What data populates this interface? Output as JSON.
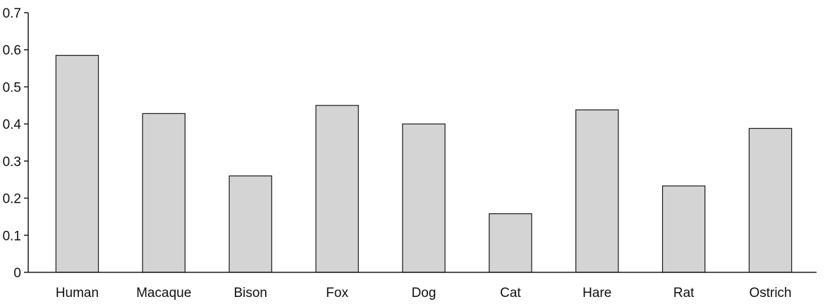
{
  "chart_data": {
    "type": "bar",
    "categories": [
      "Human",
      "Macaque",
      "Bison",
      "Fox",
      "Dog",
      "Cat",
      "Hare",
      "Rat",
      "Ostrich"
    ],
    "values": [
      0.585,
      0.428,
      0.26,
      0.45,
      0.4,
      0.158,
      0.438,
      0.233,
      0.388
    ],
    "ylim": [
      0,
      0.7
    ],
    "yticks": [
      0,
      0.1,
      0.2,
      0.3,
      0.4,
      0.5,
      0.6,
      0.7
    ],
    "ytick_labels": [
      "0",
      "0.1",
      "0.2",
      "0.3",
      "0.4",
      "0.5",
      "0.6",
      "0.7"
    ],
    "grid": false,
    "legend": "none",
    "colors": {
      "bar_fill": "#d4d4d4",
      "bar_stroke": "#1a1a1a",
      "axis": "#1a1a1a",
      "text": "#111111",
      "background": "#ffffff"
    }
  }
}
